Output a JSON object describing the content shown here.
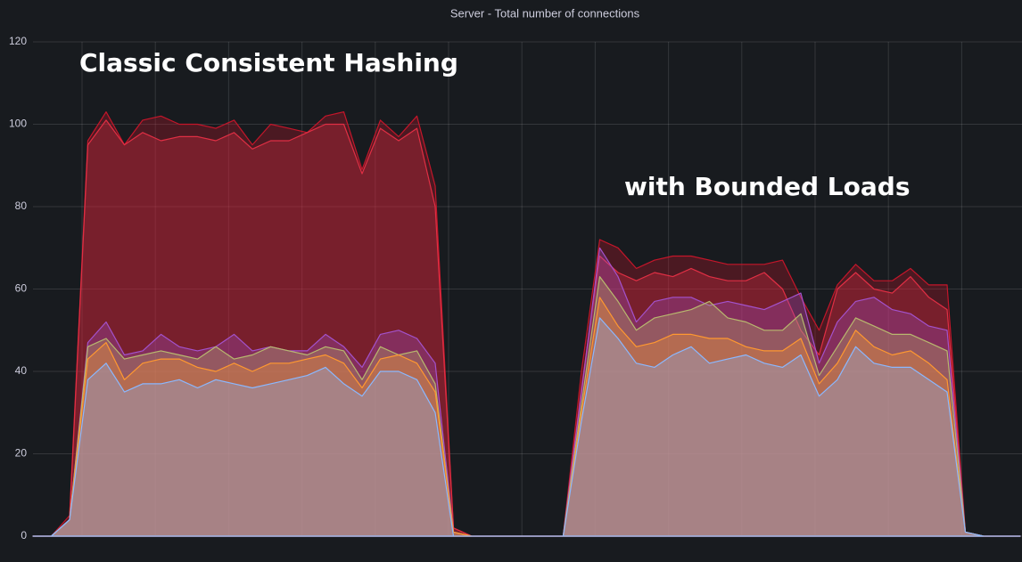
{
  "chart_data": {
    "type": "area",
    "title": "Server - Total number of connections",
    "annotations": [
      "Classic Consistent Hashing",
      "with Bounded Loads"
    ],
    "categories": [
      null,
      null,
      null,
      null,
      null,
      null,
      null,
      null,
      null,
      null,
      null,
      null,
      null,
      null,
      null,
      null,
      null,
      null,
      null,
      null,
      null,
      null,
      null,
      null,
      null,
      null,
      null,
      null,
      null,
      null,
      null,
      null,
      null,
      null,
      null,
      null,
      null,
      null,
      null,
      null,
      null,
      null,
      null,
      null,
      null,
      null,
      null,
      null,
      null,
      null,
      null,
      null,
      null,
      null,
      null
    ],
    "series": [
      {
        "color": "#c4162a",
        "values": [
          0,
          0,
          5,
          96,
          103,
          95,
          101,
          102,
          100,
          100,
          99,
          101,
          95,
          100,
          99,
          98,
          102,
          103,
          89,
          101,
          97,
          102,
          85,
          2,
          0,
          0,
          0,
          0,
          0,
          0,
          40,
          72,
          70,
          65,
          67,
          68,
          68,
          67,
          66,
          66,
          66,
          67,
          58,
          50,
          61,
          66,
          62,
          62,
          65,
          61,
          61,
          1,
          0,
          0,
          0
        ]
      },
      {
        "color": "#e02f44",
        "values": [
          0,
          0,
          4,
          95,
          101,
          95,
          98,
          96,
          97,
          97,
          96,
          98,
          94,
          96,
          96,
          98,
          100,
          100,
          88,
          99,
          96,
          99,
          80,
          2,
          0,
          0,
          0,
          0,
          0,
          0,
          36,
          68,
          64,
          62,
          64,
          63,
          65,
          63,
          62,
          62,
          64,
          60,
          50,
          44,
          60,
          64,
          60,
          59,
          63,
          58,
          55,
          1,
          0,
          0,
          0
        ]
      },
      {
        "color": "#a352cc",
        "values": [
          0,
          0,
          4,
          47,
          52,
          44,
          45,
          49,
          46,
          45,
          46,
          49,
          45,
          46,
          45,
          45,
          49,
          46,
          41,
          49,
          50,
          48,
          42,
          1,
          0,
          0,
          0,
          0,
          0,
          0,
          35,
          70,
          63,
          52,
          57,
          58,
          58,
          56,
          57,
          56,
          55,
          57,
          59,
          42,
          52,
          57,
          58,
          55,
          54,
          51,
          50,
          1,
          0,
          0,
          0
        ]
      },
      {
        "color": "#b8b86e",
        "values": [
          0,
          0,
          4,
          46,
          48,
          43,
          44,
          45,
          44,
          43,
          46,
          43,
          44,
          46,
          45,
          44,
          46,
          45,
          38,
          46,
          44,
          45,
          37,
          1,
          0,
          0,
          0,
          0,
          0,
          0,
          32,
          63,
          57,
          50,
          53,
          54,
          55,
          57,
          53,
          52,
          50,
          50,
          54,
          39,
          46,
          53,
          51,
          49,
          49,
          47,
          45,
          1,
          0,
          0,
          0
        ]
      },
      {
        "color": "#ff9830",
        "values": [
          0,
          0,
          4,
          43,
          47,
          38,
          42,
          43,
          43,
          41,
          40,
          42,
          40,
          42,
          42,
          43,
          44,
          42,
          36,
          43,
          44,
          42,
          35,
          1,
          0,
          0,
          0,
          0,
          0,
          0,
          30,
          58,
          51,
          46,
          47,
          49,
          49,
          48,
          48,
          46,
          45,
          45,
          48,
          37,
          42,
          50,
          46,
          44,
          45,
          42,
          38,
          1,
          0,
          0,
          0
        ]
      },
      {
        "color": "#8ab8ff",
        "values": [
          0,
          0,
          4,
          38,
          42,
          35,
          37,
          37,
          38,
          36,
          38,
          37,
          36,
          37,
          38,
          39,
          41,
          37,
          34,
          40,
          40,
          38,
          30,
          0,
          0,
          0,
          0,
          0,
          0,
          0,
          28,
          53,
          48,
          42,
          41,
          44,
          46,
          42,
          43,
          44,
          42,
          41,
          44,
          34,
          38,
          46,
          42,
          41,
          41,
          38,
          35,
          1,
          0,
          0,
          0
        ]
      }
    ],
    "ylim": [
      0,
      120
    ],
    "yticks": [
      0,
      20,
      40,
      60,
      80,
      100,
      120
    ],
    "grid": true,
    "fill_opacity": 0.3
  }
}
